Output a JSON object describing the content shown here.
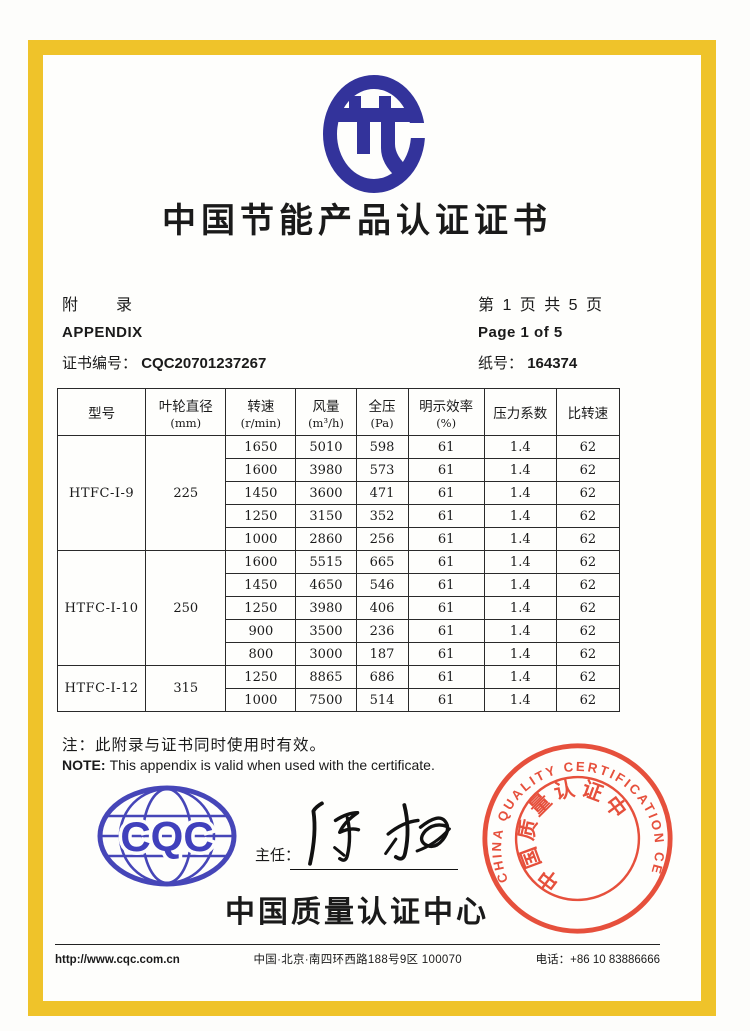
{
  "page": {
    "title": "中国节能产品认证证书",
    "appendix": {
      "label_cn": "附　　录",
      "label_en": "APPENDIX",
      "cert_no_label": "证书编号：",
      "cert_no": "CQC20701237267",
      "page_cn": "第 1 页 共 5 页",
      "page_en": "Page 1 of 5",
      "paper_no_label": "纸号：",
      "paper_no": "164374"
    },
    "table": {
      "columns": [
        {
          "label": "型号",
          "unit": ""
        },
        {
          "label": "叶轮直径",
          "unit": "(mm)"
        },
        {
          "label": "转速",
          "unit": "(r/min)"
        },
        {
          "label": "风量",
          "unit": "(m³/h)"
        },
        {
          "label": "全压",
          "unit": "(Pa)"
        },
        {
          "label": "明示效率",
          "unit": "(%)"
        },
        {
          "label": "压力系数",
          "unit": ""
        },
        {
          "label": "比转速",
          "unit": ""
        }
      ],
      "groups": [
        {
          "model": "HTFC-I-9",
          "diameter": "225",
          "rows": [
            [
              "1650",
              "5010",
              "598",
              "61",
              "1.4",
              "62"
            ],
            [
              "1600",
              "3980",
              "573",
              "61",
              "1.4",
              "62"
            ],
            [
              "1450",
              "3600",
              "471",
              "61",
              "1.4",
              "62"
            ],
            [
              "1250",
              "3150",
              "352",
              "61",
              "1.4",
              "62"
            ],
            [
              "1000",
              "2860",
              "256",
              "61",
              "1.4",
              "62"
            ]
          ]
        },
        {
          "model": "HTFC-I-10",
          "diameter": "250",
          "rows": [
            [
              "1600",
              "5515",
              "665",
              "61",
              "1.4",
              "62"
            ],
            [
              "1450",
              "4650",
              "546",
              "61",
              "1.4",
              "62"
            ],
            [
              "1250",
              "3980",
              "406",
              "61",
              "1.4",
              "62"
            ],
            [
              "900",
              "3500",
              "236",
              "61",
              "1.4",
              "62"
            ],
            [
              "800",
              "3000",
              "187",
              "61",
              "1.4",
              "62"
            ]
          ]
        },
        {
          "model": "HTFC-I-12",
          "diameter": "315",
          "rows": [
            [
              "1250",
              "8865",
              "686",
              "61",
              "1.4",
              "62"
            ],
            [
              "1000",
              "7500",
              "514",
              "61",
              "1.4",
              "62"
            ]
          ]
        }
      ]
    },
    "note": {
      "cn": "注：此附录与证书同时使用时有效。",
      "en_label": "NOTE:",
      "en_text": "This appendix is valid when used with the certificate."
    },
    "sign": {
      "label": "主任："
    },
    "issuer": {
      "name_cn": "中国质量认证中心",
      "logo_text": "CQC",
      "stamp_ring_text": "CHINA  QUALITY  CERTIFICATION  CENTRE",
      "stamp_inner_text": "中国质量认证中心"
    },
    "footer": {
      "website": "http://www.cqc.com.cn",
      "address": "中国·北京·南四环西路188号9区  100070",
      "phone": "电话：+86 10 83886666"
    },
    "colors": {
      "frame_gold": "#EFC32A",
      "logo_blue": "#33339B",
      "globe_blue": "#4646B8",
      "stamp_red": "#E5432E"
    }
  }
}
